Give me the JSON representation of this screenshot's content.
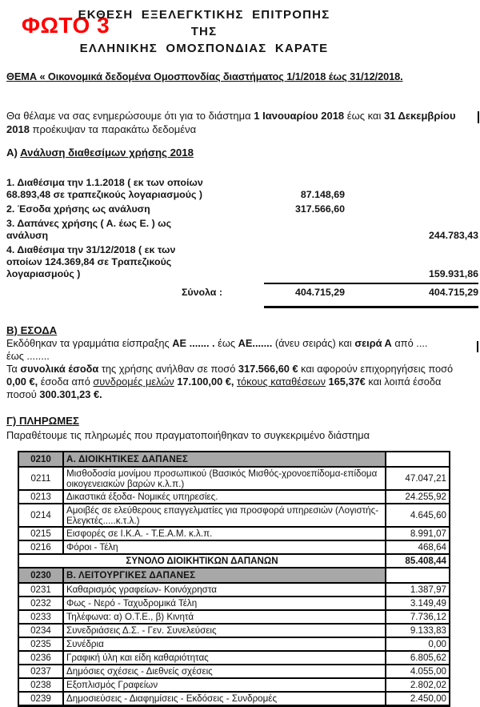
{
  "colors": {
    "accent_red": "#ff0000",
    "table_header_gray": "#a8a8a8"
  },
  "photo_label": "ΦΩΤΟ 3",
  "title": {
    "line1": "ΕΚΘΕΣΗ  ΕΞΕΛΕΓΚΤΙΚΗΣ  ΕΠΙΤΡΟΠΗΣ",
    "line2": "ΤΗΣ",
    "line3": "ΕΛΛΗΝΙΚΗΣ  ΟΜΟΣΠΟΝΔΙΑΣ  ΚΑΡΑΤΕ"
  },
  "thema": "ΘΕΜΑ « Οικονομικά δεδομένα Ομοσπονδίας διαστήματος 1/1/2018  έως 31/12/2018.",
  "intro": {
    "lines": [
      [
        {
          "t": "Θα θέλαμε να σας ενημερώσουμε ότι για το διάστημα "
        },
        {
          "t": "1 Ιανουαρίου 2018",
          "b": true
        },
        {
          "t": " έως και "
        },
        {
          "t": "31 Δεκεμβρίου",
          "b": true
        }
      ],
      [
        {
          "t": "2018",
          "b": true
        },
        {
          "t": " προέκυψαν τα παρακάτω δεδομένα"
        }
      ]
    ]
  },
  "section_a": {
    "heading_prefix": "Α) ",
    "heading_text": "Ανάλυση διαθεσίμων χρήσης 2018",
    "rows": [
      {
        "lines": [
          "1. Διαθέσιμα την 1.1.2018 ( εκ των οποίων",
          "68.893,48 σε τραπεζικούς λογαριασμούς )"
        ],
        "col1": "87.148,69",
        "col2": ""
      },
      {
        "lines": [
          "2. Έσοδα χρήσης ως ανάλυση"
        ],
        "col1": "317.566,60",
        "col2": ""
      },
      {
        "lines": [
          "3. Δαπάνες χρήσης ( Α. έως Ε. ) ως",
          "ανάλυση"
        ],
        "col1": "",
        "col2": "244.783,43"
      },
      {
        "lines": [
          "4. Διαθέσιμα την 31/12/2018 ( εκ των",
          "οποίων  124.369,84  σε Τραπεζικούς",
          "λογαριασμούς )"
        ],
        "col1": "",
        "col2": "159.931,86"
      }
    ],
    "totals_label": "Σύνολα :",
    "totals_col1": "404.715,29",
    "totals_col2": "404.715,29"
  },
  "esoda": {
    "heading": "Β) ΕΣΟΔΑ",
    "lines": [
      [
        {
          "t": "Εκδόθηκαν τα γραμμάτια είσπραξης "
        },
        {
          "t": "ΑΕ ....... .",
          "b": true
        },
        {
          "t": " έως "
        },
        {
          "t": "ΑΕ.......",
          "b": true
        },
        {
          "t": " (άνευ σειράς)  και "
        },
        {
          "t": "σειρά Α",
          "b": true
        },
        {
          "t": " από  ...."
        }
      ],
      [
        {
          "t": "έως ........"
        }
      ],
      [
        {
          "t": "Τα "
        },
        {
          "t": "συνολικά έσοδα",
          "b": true
        },
        {
          "t": " της χρήσης ανήλθαν σε ποσό  "
        },
        {
          "t": "317.566,60 €",
          "b": true
        },
        {
          "t": " και αφορούν επιχορηγήσεις ποσό"
        }
      ],
      [
        {
          "t": "0,00 €,",
          "b": true
        },
        {
          "t": " έσοδα από "
        },
        {
          "t": "συνδρομές μελών",
          "u": true
        },
        {
          "t": "  "
        },
        {
          "t": "17.100,00  €,",
          "b": true
        },
        {
          "t": " "
        },
        {
          "t": "τόκους καταθέσεων",
          "u": true
        },
        {
          "t": "  "
        },
        {
          "t": "165,37€",
          "b": true
        },
        {
          "t": " και λοιπά έσοδα"
        }
      ],
      [
        {
          "t": "ποσού "
        },
        {
          "t": "300.301,23 €.",
          "b": true
        }
      ]
    ]
  },
  "plyromes": {
    "heading": "Γ) ΠΛΗΡΩΜΕΣ",
    "intro": "Παραθέτουμε τις πληρωμές που πραγματοποιήθηκαν το συγκεκριμένο διάστημα"
  },
  "payments": {
    "rows": [
      {
        "code": "0210",
        "desc": "Α.   ΔΙΟΙΚΗΤΙΚΕΣ ΔΑΠΑΝΕΣ",
        "amount": "",
        "kind": "section"
      },
      {
        "code": "0211",
        "desc": "Μισθοδοσία μονίμου προσωπικού (Βασικός Μισθός-χρονοεπίδομα-επίδομα οικογενειακών βαρών κ.λ.π.)",
        "amount": "47.047,21",
        "kind": "item2"
      },
      {
        "code": "0213",
        "desc": "Δικαστικά έξοδα- Νομικές υπηρεσίες.",
        "amount": "24.255,92",
        "kind": "item"
      },
      {
        "code": "0214",
        "desc": "Αμοιβές σε ελεύθερους επαγγελματίες για προσφορά υπηρεσιών (Λογιστής-Ελεγκτές.....κ.τ.λ.)",
        "amount": "4.645,60",
        "kind": "item2"
      },
      {
        "code": "0215",
        "desc": "Εισφορές σε Ι.Κ.Α. - Τ.Ε.Α.Μ. κ.λ.π.",
        "amount": "8.991,07",
        "kind": "item"
      },
      {
        "code": "0216",
        "desc": "Φόροι - Τέλη",
        "amount": "468,64",
        "kind": "item"
      },
      {
        "code": "",
        "desc": "ΣΥΝΟΛΟ ΔΙΟΙΚΗΤΙΚΩΝ ΔΑΠΑΝΩΝ",
        "amount": "85.408,44",
        "kind": "total"
      },
      {
        "code": "0230",
        "desc": "Β.   ΛΕΙΤΟΥΡΓΙΚΕΣ ΔΑΠΑΝΕΣ",
        "amount": "",
        "kind": "section"
      },
      {
        "code": "0231",
        "desc": "Καθαρισμός γραφείων- Κοινόχρηστα",
        "amount": "1.387,97",
        "kind": "item"
      },
      {
        "code": "0232",
        "desc": "Φως - Νερό - Ταχυδρομικά Τέλη",
        "amount": "3.149,49",
        "kind": "item"
      },
      {
        "code": "0233",
        "desc": "Τηλέφωνα: α) Ο.Τ.Ε., β) Κινητά",
        "amount": "7.736,12",
        "kind": "item"
      },
      {
        "code": "0234",
        "desc": "Συνεδριάσεις Δ.Σ. - Γεν. Συνελεύσεις",
        "amount": "9.133,83",
        "kind": "item"
      },
      {
        "code": "0235",
        "desc": "Συνέδρια",
        "amount": "0,00",
        "kind": "item"
      },
      {
        "code": "0236",
        "desc": "Γραφική ύλη και είδη καθαριότητας",
        "amount": "6.805,62",
        "kind": "item"
      },
      {
        "code": "0237",
        "desc": "Δημόσιες σχέσεις - Διεθνείς σχέσεις",
        "amount": "4.055,00",
        "kind": "item"
      },
      {
        "code": "0238",
        "desc": "Εξοπλισμός Γραφείων",
        "amount": "2.802,02",
        "kind": "item"
      },
      {
        "code": "0239",
        "desc": "Δημοσιεύσεις - Διαφημίσεις - Εκδόσεις - Συνδρομές",
        "amount": "2.450,00",
        "kind": "item"
      }
    ]
  }
}
